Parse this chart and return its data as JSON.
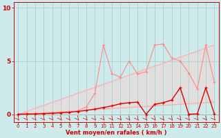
{
  "xlabel": "Vent moyen/en rafales ( km/h )",
  "xlim": [
    -0.5,
    23.5
  ],
  "ylim": [
    -0.7,
    10.5
  ],
  "yticks": [
    0,
    5,
    10
  ],
  "xticks": [
    0,
    1,
    2,
    3,
    4,
    5,
    6,
    7,
    8,
    9,
    10,
    11,
    12,
    13,
    14,
    15,
    16,
    17,
    18,
    19,
    20,
    21,
    22,
    23
  ],
  "bg_color": "#ceeaea",
  "grid_color": "#aacfcf",
  "x_data": [
    0,
    1,
    2,
    3,
    4,
    5,
    6,
    7,
    8,
    9,
    10,
    11,
    12,
    13,
    14,
    15,
    16,
    17,
    18,
    19,
    20,
    21,
    22,
    23
  ],
  "line_upper_color": "#ffaaaa",
  "line_upper_y": [
    0,
    0.28,
    0.57,
    0.85,
    1.13,
    1.41,
    1.7,
    1.98,
    2.26,
    2.54,
    2.83,
    3.11,
    3.39,
    3.67,
    3.96,
    4.24,
    4.52,
    4.8,
    5.09,
    5.37,
    5.65,
    5.93,
    6.22,
    6.5
  ],
  "line_gust_color": "#ff8888",
  "line_gust_y": [
    0.05,
    0.05,
    0.05,
    0.1,
    0.15,
    0.2,
    0.25,
    0.35,
    0.7,
    2.0,
    6.5,
    3.8,
    3.5,
    5.0,
    3.8,
    4.0,
    6.5,
    6.6,
    5.3,
    5.0,
    3.9,
    2.4,
    6.5,
    3.0
  ],
  "line_mean_color": "#dd0000",
  "line_mean_y": [
    0.02,
    0.03,
    0.05,
    0.08,
    0.1,
    0.15,
    0.2,
    0.28,
    0.38,
    0.5,
    0.65,
    0.8,
    1.0,
    1.1,
    1.15,
    0.02,
    0.95,
    1.1,
    1.35,
    2.5,
    0.02,
    0.05,
    2.5,
    0.05
  ],
  "line_lower_color": "#ffaaaa",
  "line_lower_y": [
    0,
    0.05,
    0.1,
    0.15,
    0.2,
    0.25,
    0.3,
    0.35,
    0.4,
    0.45,
    0.5,
    0.55,
    0.6,
    0.65,
    0.7,
    0.75,
    0.8,
    0.85,
    0.9,
    0.95,
    1.0,
    1.05,
    1.1,
    1.15
  ],
  "ax_color": "#cc0000",
  "spine_color": "#cc0000"
}
